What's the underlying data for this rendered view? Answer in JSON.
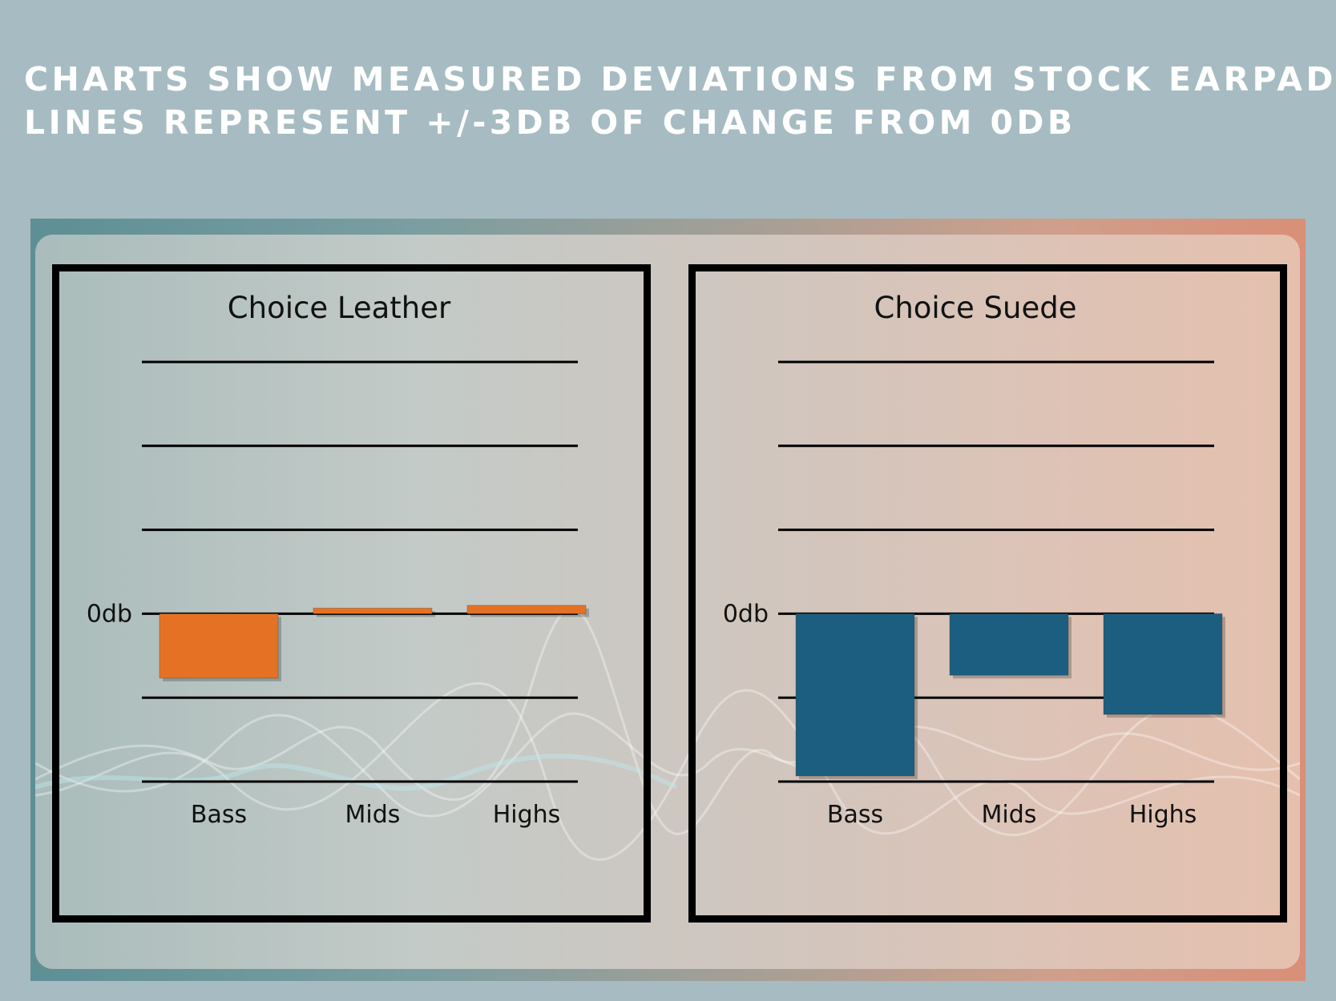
{
  "heading": {
    "line1": "Charts show measured deviations from stock earpads.",
    "line2": "Lines represent +/-3dB of change from 0dB"
  },
  "colors": {
    "background": "#a6bcc2",
    "leather_bar": "#e57224",
    "suede_bar": "#1b5e80"
  },
  "chart_data": [
    {
      "type": "bar",
      "title": "Choice Leather",
      "categories": [
        "Bass",
        "Mids",
        "Highs"
      ],
      "values": [
        -2.3,
        0.2,
        0.3
      ],
      "zero_label": "0db",
      "ylim": [
        -6,
        9
      ],
      "gridlines": [
        9,
        6,
        3,
        0,
        -3,
        -6
      ],
      "color": "#e57224"
    },
    {
      "type": "bar",
      "title": "Choice Suede",
      "categories": [
        "Bass",
        "Mids",
        "Highs"
      ],
      "values": [
        -5.8,
        -2.2,
        -3.6
      ],
      "zero_label": "0db",
      "ylim": [
        -6,
        9
      ],
      "gridlines": [
        9,
        6,
        3,
        0,
        -3,
        -6
      ],
      "color": "#1b5e80"
    }
  ]
}
